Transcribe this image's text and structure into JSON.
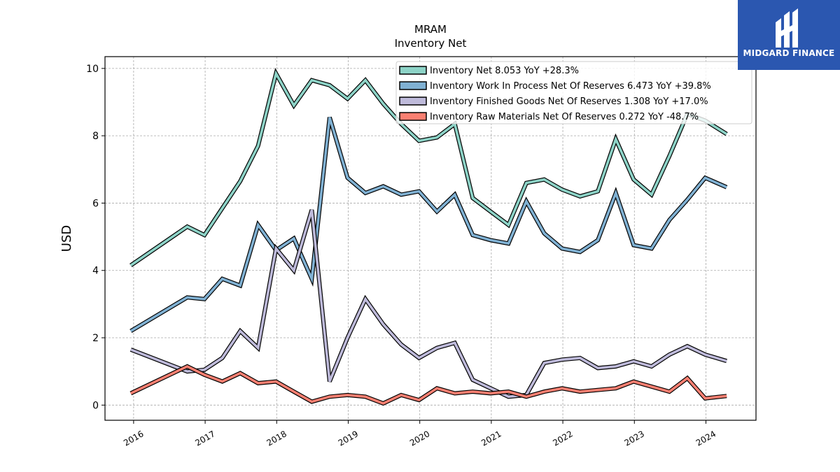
{
  "chart_data": {
    "type": "line",
    "title": "MRAM",
    "subtitle": "Inventory Net",
    "xlabel": "",
    "ylabel": "USD",
    "ylim": [
      -0.45,
      10.35
    ],
    "xlim": [
      2015.6,
      2024.7
    ],
    "yticks": [
      0,
      2,
      4,
      6,
      8,
      10
    ],
    "xticks": [
      2016,
      2017,
      2018,
      2019,
      2020,
      2021,
      2022,
      2023,
      2024
    ],
    "grid": true,
    "legend_position": "top-right",
    "x": [
      2015.96,
      2016.75,
      2016.99,
      2017.24,
      2017.49,
      2017.74,
      2017.99,
      2018.24,
      2018.49,
      2018.74,
      2018.99,
      2019.24,
      2019.49,
      2019.74,
      2019.99,
      2020.24,
      2020.49,
      2020.74,
      2020.99,
      2021.24,
      2021.49,
      2021.74,
      2021.99,
      2022.24,
      2022.49,
      2022.74,
      2022.99,
      2023.24,
      2023.49,
      2023.74,
      2023.99,
      2024.29
    ],
    "series": [
      {
        "name": "Inventory Net",
        "legend_label": "Inventory Net  8.053 YoY +28.3%",
        "color": "#8dd3c7",
        "values": [
          4.15,
          5.3,
          5.05,
          5.85,
          6.65,
          7.7,
          9.85,
          8.9,
          9.65,
          9.5,
          9.1,
          9.65,
          8.95,
          8.35,
          7.85,
          7.95,
          8.35,
          6.15,
          5.75,
          5.35,
          6.6,
          6.7,
          6.4,
          6.2,
          6.35,
          7.9,
          6.7,
          6.25,
          7.4,
          8.65,
          8.45,
          8.05
        ]
      },
      {
        "name": "Inventory Work In Process Net Of Reserves",
        "legend_label": "Inventory Work In Process Net Of Reserves  6.473 YoY +39.8%",
        "color": "#80b1d3",
        "values": [
          2.2,
          3.2,
          3.15,
          3.75,
          3.55,
          5.35,
          4.6,
          4.95,
          3.75,
          8.55,
          6.75,
          6.3,
          6.5,
          6.25,
          6.35,
          5.75,
          6.25,
          5.05,
          4.9,
          4.8,
          6.05,
          5.1,
          4.65,
          4.55,
          4.9,
          6.3,
          4.75,
          4.65,
          5.5,
          6.1,
          6.75,
          6.47
        ]
      },
      {
        "name": "Inventory Finished Goods Net Of Reserves",
        "legend_label": "Inventory Finished Goods Net Of Reserves  1.308 YoY +17.0%",
        "color": "#bebada",
        "values": [
          1.65,
          1.0,
          1.05,
          1.4,
          2.2,
          1.7,
          4.65,
          4.0,
          5.8,
          0.7,
          2.0,
          3.15,
          2.4,
          1.8,
          1.4,
          1.7,
          1.85,
          0.75,
          0.5,
          0.25,
          0.3,
          1.25,
          1.35,
          1.4,
          1.1,
          1.15,
          1.3,
          1.15,
          1.5,
          1.75,
          1.5,
          1.31
        ]
      },
      {
        "name": "Inventory Raw Materials Net Of Reserves",
        "legend_label": "Inventory Raw Materials Net Of Reserves  0.272 YoY -48.7%",
        "color": "#fb8072",
        "values": [
          0.35,
          1.15,
          0.9,
          0.7,
          0.95,
          0.65,
          0.7,
          0.4,
          0.1,
          0.25,
          0.3,
          0.25,
          0.05,
          0.3,
          0.15,
          0.5,
          0.35,
          0.4,
          0.35,
          0.4,
          0.25,
          0.4,
          0.5,
          0.4,
          0.45,
          0.5,
          0.7,
          0.55,
          0.4,
          0.8,
          0.2,
          0.27
        ]
      }
    ]
  },
  "logo": {
    "name": "MIDGARD FINANCE",
    "color": "#2b57b0"
  }
}
